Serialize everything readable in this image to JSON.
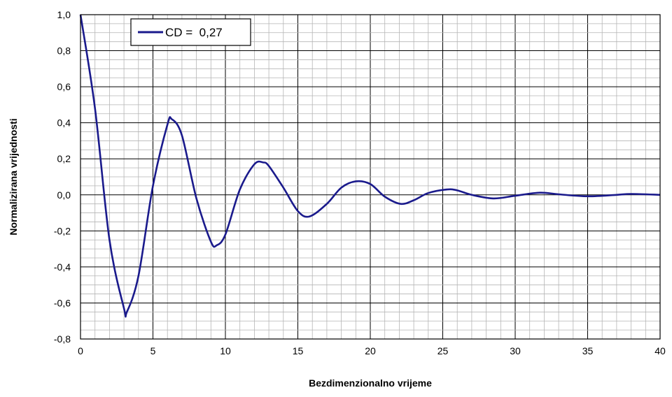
{
  "chart_data": {
    "type": "line",
    "title": "",
    "xlabel": "Bezdimenzionalno vrijeme",
    "ylabel": "Normalizirana vrijednosti",
    "xlim": [
      0,
      40
    ],
    "ylim": [
      -0.8,
      1.0
    ],
    "x_ticks": [
      "0",
      "5",
      "10",
      "15",
      "20",
      "25",
      "30",
      "35",
      "40"
    ],
    "y_ticks": [
      "1,0",
      "0,8",
      "0,6",
      "0,4",
      "0,2",
      "0,0",
      "-0,2",
      "-0,4",
      "-0,6",
      "-0,8"
    ],
    "grid": true,
    "legend_position": "top-left",
    "series": [
      {
        "name": "CD =  0,27",
        "color": "#1a1a8c",
        "x": [
          0,
          1,
          2,
          3,
          3.2,
          4,
          5,
          6,
          6.3,
          7,
          8,
          9,
          9.4,
          10,
          11,
          12,
          12.6,
          13,
          14,
          15,
          15.8,
          17,
          18,
          19,
          20,
          21,
          22.1,
          23,
          24,
          25.3,
          26,
          27,
          28.5,
          30,
          31.7,
          33,
          35,
          37,
          38,
          40
        ],
        "y": [
          1.0,
          0.48,
          -0.25,
          -0.63,
          -0.65,
          -0.45,
          0.05,
          0.39,
          0.42,
          0.33,
          -0.02,
          -0.26,
          -0.28,
          -0.22,
          0.03,
          0.17,
          0.18,
          0.16,
          0.04,
          -0.09,
          -0.12,
          -0.05,
          0.04,
          0.075,
          0.06,
          -0.01,
          -0.05,
          -0.03,
          0.01,
          0.03,
          0.025,
          0.0,
          -0.02,
          -0.005,
          0.012,
          0.003,
          -0.008,
          0.0,
          0.005,
          0.0
        ]
      }
    ]
  }
}
